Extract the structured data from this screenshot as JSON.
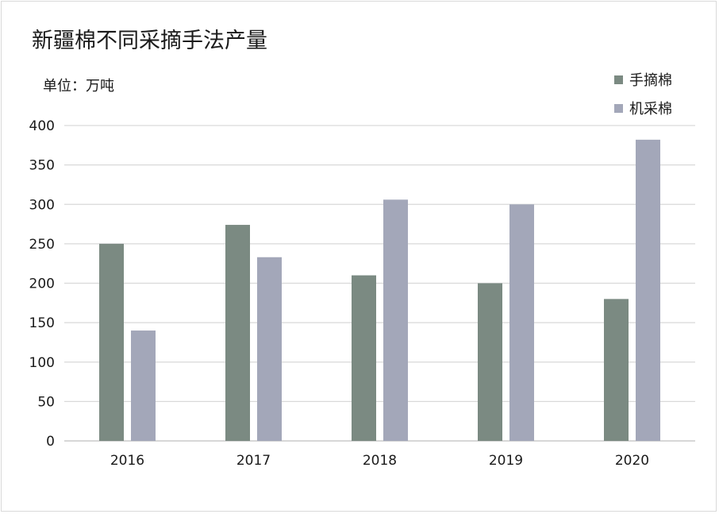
{
  "chart_data": {
    "type": "bar",
    "title": "新疆棉不同采摘手法产量",
    "unit_label": "单位：万吨",
    "categories": [
      "2016",
      "2017",
      "2018",
      "2019",
      "2020"
    ],
    "series": [
      {
        "name": "手摘棉",
        "values": [
          250,
          274,
          210,
          200,
          180
        ],
        "color": "#7b8a82"
      },
      {
        "name": "机采棉",
        "values": [
          140,
          233,
          306,
          300,
          382
        ],
        "color": "#a3a7b9"
      }
    ],
    "y_ticks": [
      "0",
      "50",
      "100",
      "150",
      "200",
      "250",
      "300",
      "350",
      "400"
    ],
    "ylim": [
      0,
      400
    ],
    "grid": true,
    "legend_position": "top-right"
  }
}
